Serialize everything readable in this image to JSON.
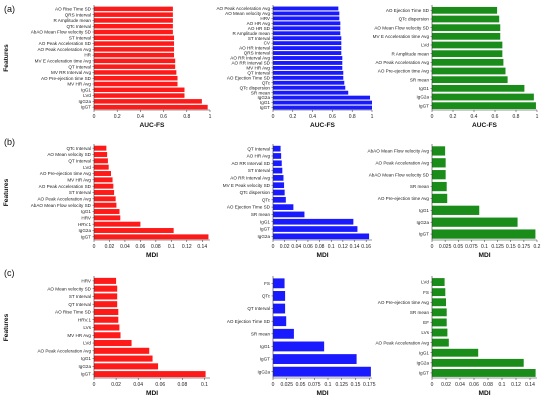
{
  "chart_data": [
    {
      "type": "bar",
      "orientation": "horizontal",
      "panel": "(a)",
      "ylabel": "Features",
      "xlabel": "AUC-FS",
      "xlim": [
        0,
        1
      ],
      "ticks": [
        0,
        0.2,
        0.4,
        0.6,
        0.8,
        1
      ],
      "color": "#ff1a1a",
      "categories": [
        "AO Rise Time SD",
        "QRS Interval",
        "R Amplitude mean",
        "QTc Interval",
        "AbAO Mean Flow velocity SD",
        "ST Interval",
        "AO Peak Acceleration SD",
        "AO Peak Acceleration Avg",
        "HR",
        "MV E Acceleration time Avg",
        "QT Interval",
        "MV RR Interval Avg",
        "AO Pre-ejection time SD",
        "MV HR Avg",
        "IgG1",
        "LVd",
        "IgG2a",
        "IgGT"
      ],
      "values": [
        0.68,
        0.68,
        0.68,
        0.68,
        0.68,
        0.69,
        0.69,
        0.69,
        0.69,
        0.7,
        0.7,
        0.71,
        0.72,
        0.72,
        0.78,
        0.78,
        0.93,
        0.98
      ]
    },
    {
      "type": "bar",
      "orientation": "horizontal",
      "panel": "(a)",
      "xlabel": "AUC-FS",
      "xlim": [
        0,
        1
      ],
      "ticks": [
        0,
        0.2,
        0.4,
        0.6,
        0.8,
        1
      ],
      "color": "#1a1aff",
      "categories": [
        "AO Peak Acceleration Avg",
        "AO Mean velocity Avg",
        "HRV",
        "AO HR Avg",
        "AO HR SD",
        "R Amplitude mean",
        "ST Interval",
        "CV",
        "AO HR Interval",
        "QRS Interval",
        "AO RR Interval Avg",
        "AO RR Interval SD",
        "MV HR Avg",
        "QT Interval",
        "AO Ejection Time SD",
        "QTc",
        "QTc dispersion",
        "SR mean",
        "IgG2a",
        "IgG1",
        "IgGT"
      ],
      "values": [
        0.66,
        0.67,
        0.67,
        0.68,
        0.68,
        0.68,
        0.69,
        0.69,
        0.69,
        0.69,
        0.7,
        0.7,
        0.7,
        0.71,
        0.71,
        0.72,
        0.73,
        0.76,
        0.98,
        1.0,
        1.0
      ]
    },
    {
      "type": "bar",
      "orientation": "horizontal",
      "panel": "(a)",
      "xlabel": "AUC-FS",
      "xlim": [
        0,
        1
      ],
      "ticks": [
        0,
        0.2,
        0.4,
        0.6,
        0.8,
        1
      ],
      "color": "#1a8c1a",
      "categories": [
        "AO Ejection Time SD",
        "QTc dispersion",
        "AO Mean Flow velocity SD",
        "MV E Acceleration time Avg",
        "LVd",
        "R Amplitude mean",
        "AO Peak Acceleration Avg",
        "AO Pre-ejection time Avg",
        "SR mean",
        "IgG1",
        "IgG2a",
        "IgGT"
      ],
      "values": [
        0.62,
        0.64,
        0.65,
        0.65,
        0.67,
        0.67,
        0.68,
        0.7,
        0.72,
        0.88,
        0.97,
        0.99
      ]
    },
    {
      "type": "bar",
      "orientation": "horizontal",
      "panel": "(b)",
      "ylabel": "Features",
      "xlabel": "MDI",
      "xlim": [
        0,
        0.15
      ],
      "ticks": [
        0,
        0.02,
        0.04,
        0.06,
        0.08,
        0.1,
        0.12,
        0.14
      ],
      "color": "#ff1a1a",
      "categories": [
        "QTc Interval",
        "AO Mean velocity SD",
        "QT Interval",
        "LVd",
        "AO Pre-ejection time Avg",
        "MV HR Avg",
        "AO Peak Acceleration SD",
        "ST Interval",
        "AO Peak Acceleration Avg",
        "AbAO Mean Flow velocity SD",
        "IgG1",
        "HRV",
        "HRV.1",
        "IgG2a",
        "IgGT"
      ],
      "values": [
        0.016,
        0.017,
        0.018,
        0.019,
        0.022,
        0.024,
        0.025,
        0.026,
        0.028,
        0.029,
        0.033,
        0.034,
        0.06,
        0.103,
        0.148
      ]
    },
    {
      "type": "bar",
      "orientation": "horizontal",
      "panel": "(b)",
      "xlabel": "MDI",
      "xlim": [
        0,
        0.17
      ],
      "ticks": [
        0,
        0.02,
        0.04,
        0.06,
        0.08,
        0.1,
        0.12,
        0.14,
        0.16
      ],
      "color": "#1a1aff",
      "categories": [
        "QT Interval",
        "AO HR Avg",
        "AO RR Interval SD",
        "ST Interval",
        "AO RR Interval Avg",
        "MV E Peak velocity SD",
        "QTc dispersion",
        "QTc",
        "AO Ejection Time SD",
        "SR mean",
        "IgG1",
        "IgGT",
        "IgG2a"
      ],
      "values": [
        0.013,
        0.014,
        0.015,
        0.016,
        0.018,
        0.019,
        0.02,
        0.022,
        0.035,
        0.054,
        0.138,
        0.145,
        0.165
      ]
    },
    {
      "type": "bar",
      "orientation": "horizontal",
      "panel": "(b)",
      "xlabel": "MDI",
      "xlim": [
        0,
        0.2
      ],
      "ticks": [
        0,
        0.025,
        0.05,
        0.075,
        0.1,
        0.125,
        0.15,
        0.175,
        0.2
      ],
      "color": "#1a8c1a",
      "categories": [
        "AbAO Mean Flow velocity Avg",
        "AO Peak Acceleration Avg",
        "AbAO Mean Flow velocity SD",
        "SR mean",
        "AO Pre-ejection time Avg",
        "IgG1",
        "IgG2a",
        "IgGT"
      ],
      "values": [
        0.025,
        0.026,
        0.026,
        0.028,
        0.029,
        0.09,
        0.163,
        0.197
      ]
    },
    {
      "type": "bar",
      "orientation": "horizontal",
      "panel": "(c)",
      "ylabel": "Features",
      "xlabel": "MDI",
      "xlim": [
        0,
        0.105
      ],
      "ticks": [
        0,
        0.02,
        0.04,
        0.06,
        0.08,
        0.1
      ],
      "color": "#ff1a1a",
      "categories": [
        "HRV",
        "AO Mean velocity SD",
        "ST Interval",
        "QT Interval",
        "AO Rise Time SD",
        "HRV.1",
        "LVs",
        "MV HR Avg",
        "LVd",
        "AO Peak Acceleration Avg",
        "IgG1",
        "IgG2a",
        "IgGT"
      ],
      "values": [
        0.02,
        0.021,
        0.021,
        0.021,
        0.022,
        0.022,
        0.023,
        0.024,
        0.034,
        0.05,
        0.053,
        0.058,
        0.101
      ]
    },
    {
      "type": "bar",
      "orientation": "horizontal",
      "panel": "(c)",
      "xlabel": "MDI",
      "xlim": [
        0,
        0.18
      ],
      "ticks": [
        0,
        0.025,
        0.05,
        0.075,
        0.1,
        0.125,
        0.15,
        0.175
      ],
      "color": "#1a1aff",
      "categories": [
        "FS",
        "QTc",
        "QT Interval",
        "AO Ejection Time SD",
        "SR mean",
        "IgG1",
        "IgGT",
        "IgG2a"
      ],
      "values": [
        0.021,
        0.022,
        0.022,
        0.024,
        0.038,
        0.093,
        0.152,
        0.178
      ]
    },
    {
      "type": "bar",
      "orientation": "horizontal",
      "panel": "(c)",
      "xlabel": "MDI",
      "xlim": [
        0,
        0.15
      ],
      "ticks": [
        0,
        0.02,
        0.04,
        0.06,
        0.08,
        0.1,
        0.12,
        0.14
      ],
      "color": "#1a8c1a",
      "categories": [
        "LVd",
        "FS",
        "AO Pre-ejection time Avg",
        "SR mean",
        "EF",
        "LVs",
        "AO Peak Acceleration Avg",
        "IgG1",
        "IgG2a",
        "IgGT"
      ],
      "values": [
        0.018,
        0.019,
        0.02,
        0.021,
        0.021,
        0.022,
        0.024,
        0.066,
        0.131,
        0.148
      ]
    }
  ]
}
